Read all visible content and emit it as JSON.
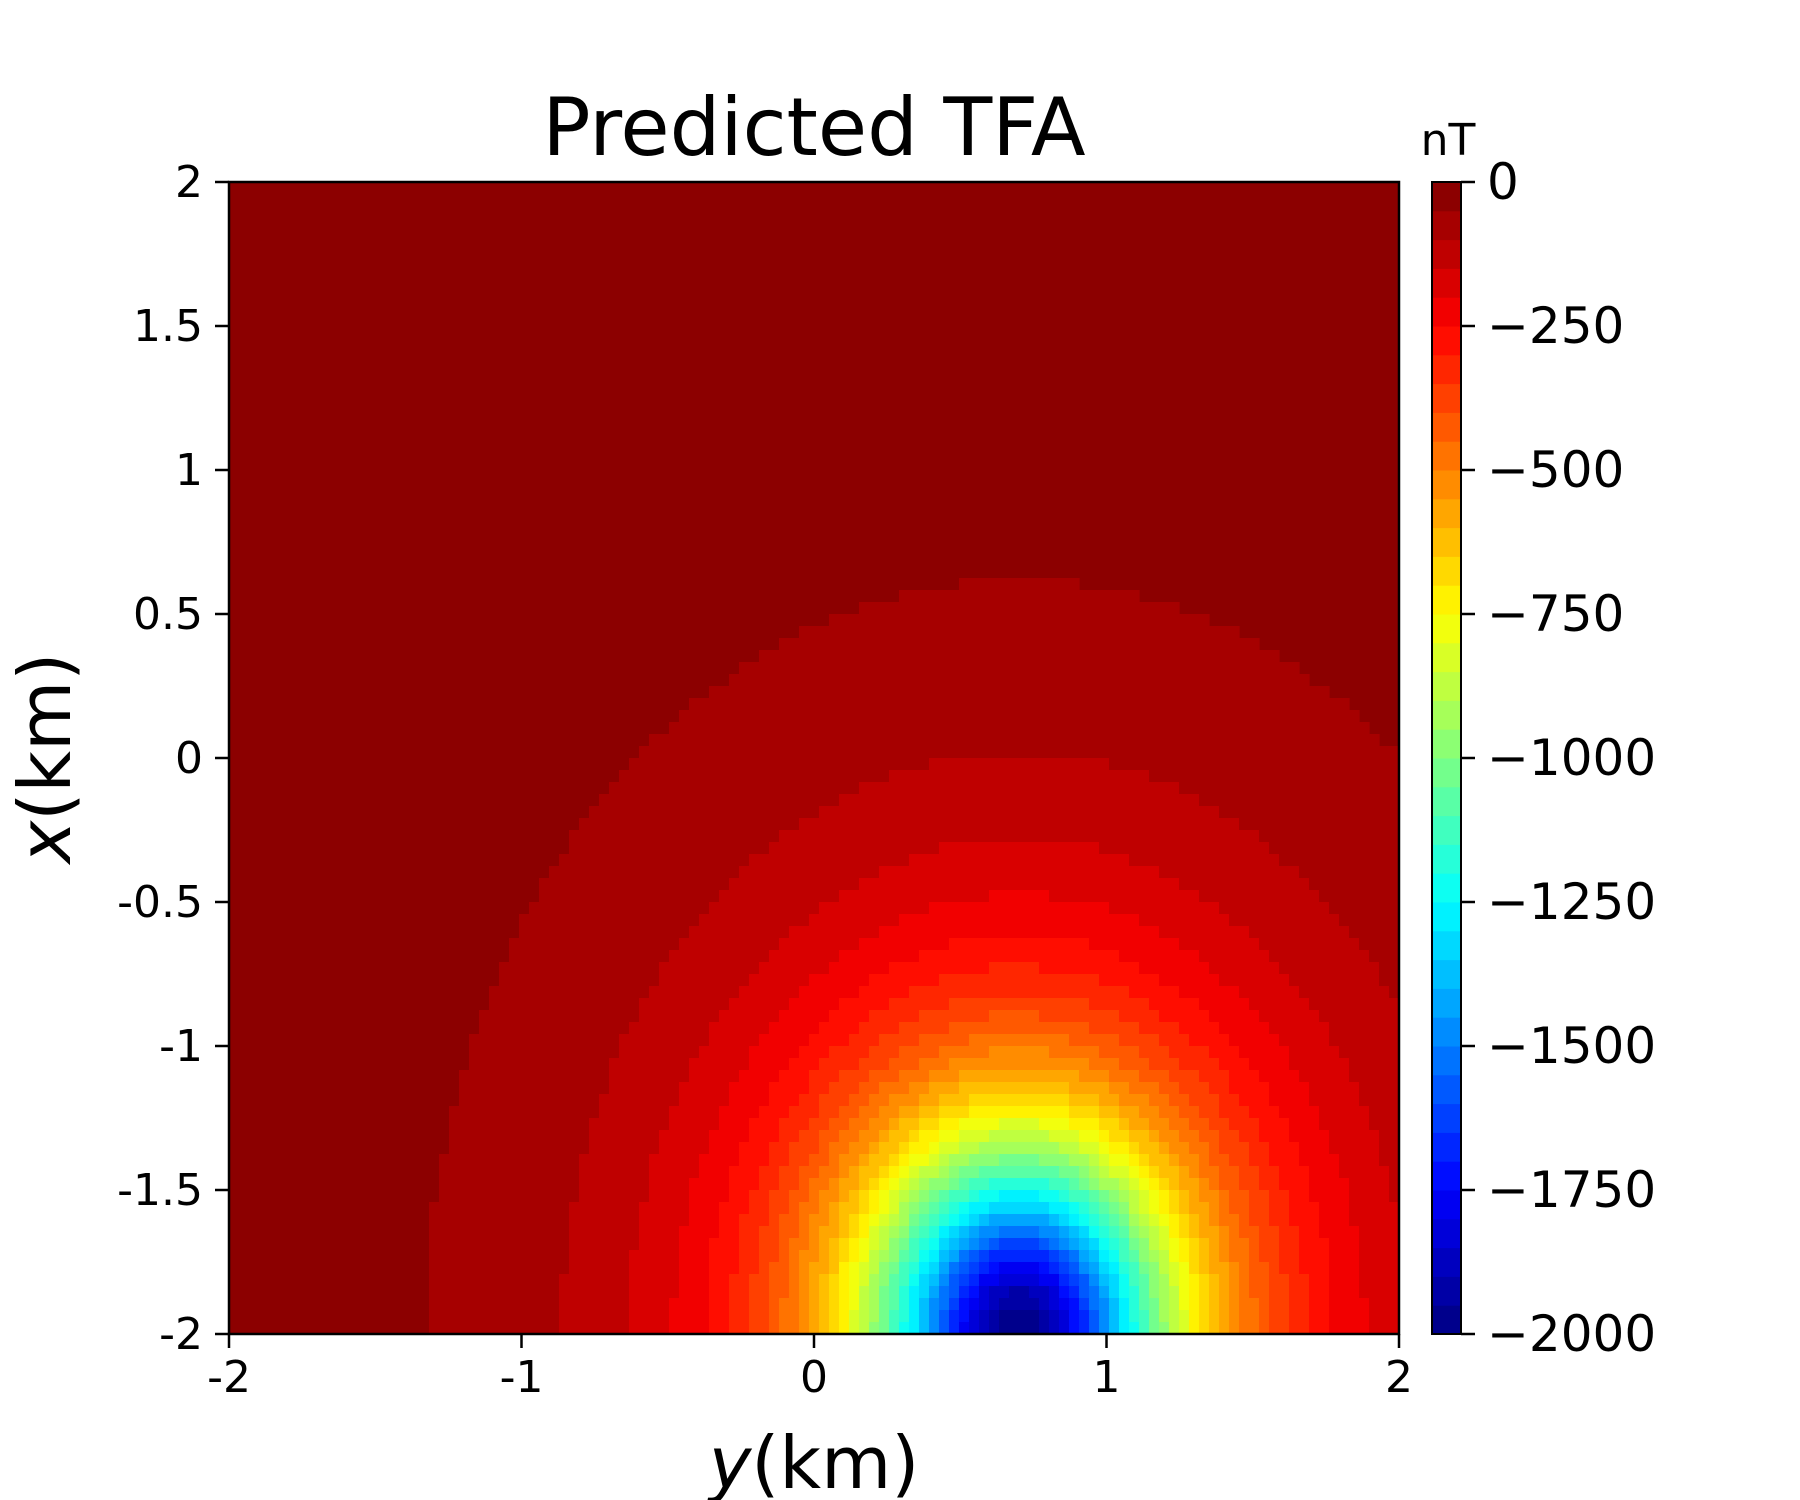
{
  "chart_data": {
    "type": "heatmap",
    "subtype": "filled-contour",
    "title": "Predicted TFA",
    "xlabel_italic": "y",
    "xlabel_unit": "(km)",
    "ylabel_italic": "x",
    "ylabel_unit": "(km)",
    "xlim": [
      -2,
      2
    ],
    "ylim": [
      -2,
      2
    ],
    "x_ticks": [
      -2,
      -1,
      0,
      1,
      2
    ],
    "x_tick_labels": [
      "-2",
      "-1",
      "0",
      "1",
      "2"
    ],
    "y_ticks": [
      -2,
      -1.5,
      -1,
      -0.5,
      0,
      0.5,
      1,
      1.5,
      2
    ],
    "y_tick_labels": [
      "-2",
      "-1.5",
      "-1",
      "-0.5",
      "0",
      "0.5",
      "1",
      "1.5",
      "2"
    ],
    "colormap": "jet",
    "colorbar": {
      "unit": "nT",
      "range": [
        -2000,
        0
      ],
      "levels": 40,
      "ticks": [
        0,
        -250,
        -500,
        -750,
        -1000,
        -1250,
        -1500,
        -1750,
        -2000
      ],
      "tick_labels": [
        "0",
        "−250",
        "−500",
        "−750",
        "−1000",
        "−1250",
        "−1500",
        "−1750",
        "−2000"
      ]
    },
    "anomaly": {
      "center_y_km": 0.7,
      "center_x_km": -2.0,
      "min_value_nT": -2000,
      "background_nT": 0
    }
  }
}
